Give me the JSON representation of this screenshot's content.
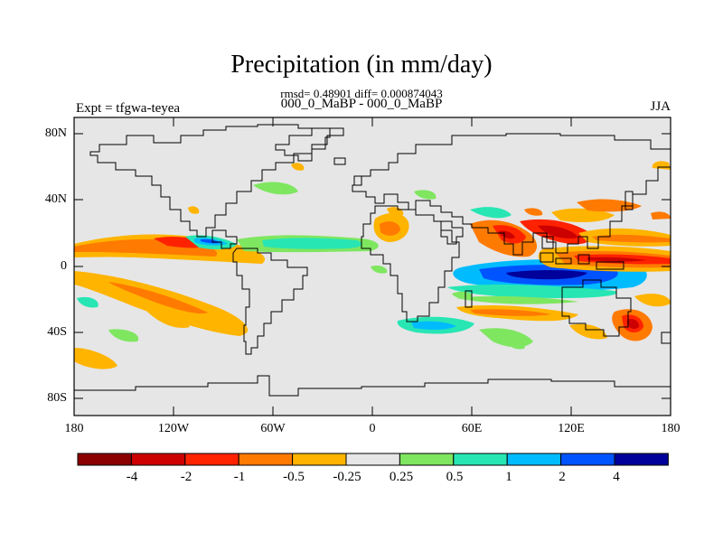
{
  "title": "Precipitation (in mm/day)",
  "subtitle_stats": "rmsd= 0.48901 diff= 0.000874043",
  "subtitle_cases": "000_0_MaBP - 000_0_MaBP",
  "left_string": "Expt = tfgwa-teyea",
  "right_string": "JJA",
  "map": {
    "projection": "cylindrical equidistant",
    "lon_range": [
      -180,
      180
    ],
    "lat_range": [
      -90,
      90
    ],
    "lat_ticks": [
      {
        "value": 80,
        "label": "80N"
      },
      {
        "value": 40,
        "label": "40N"
      },
      {
        "value": 0,
        "label": "0"
      },
      {
        "value": -40,
        "label": "40S"
      },
      {
        "value": -80,
        "label": "80S"
      }
    ],
    "lon_ticks": [
      {
        "value": -180,
        "label": "180"
      },
      {
        "value": -120,
        "label": "120W"
      },
      {
        "value": -60,
        "label": "60W"
      },
      {
        "value": 0,
        "label": "0"
      },
      {
        "value": 60,
        "label": "60E"
      },
      {
        "value": 120,
        "label": "120E"
      },
      {
        "value": 180,
        "label": "180"
      }
    ],
    "background_color": "#e6e6e6",
    "coastline_color": "#000000"
  },
  "colorbar": {
    "colors": [
      "#8b0000",
      "#cc0000",
      "#ff2200",
      "#ff7a00",
      "#ffb400",
      "#e6e6e6",
      "#7fe660",
      "#28e6b4",
      "#00bcff",
      "#0054ff",
      "#00009a"
    ],
    "labels": [
      "-4",
      "-2",
      "-1",
      "-0.5",
      "-0.25",
      "0.25",
      "0.5",
      "1",
      "2",
      "4"
    ]
  },
  "features": [
    {
      "name": "east-pacific-itcz-positive",
      "lon": -150,
      "lat": 10,
      "color_index": 3
    },
    {
      "name": "east-pacific-itcz-strong",
      "lon": -125,
      "lat": 7,
      "color_index": 2
    },
    {
      "name": "central-america-negative",
      "lon": -100,
      "lat": 7,
      "color_index": 8
    },
    {
      "name": "atlantic-itcz-negative",
      "lon": -40,
      "lat": 6,
      "color_index": 7
    },
    {
      "name": "west-africa-positive",
      "lon": 3,
      "lat": 10,
      "color_index": 3
    },
    {
      "name": "indian-ocean-negative",
      "lon": 95,
      "lat": -4,
      "color_index": 9
    },
    {
      "name": "bay-of-bengal-positive",
      "lon": 88,
      "lat": 18,
      "color_index": 1
    },
    {
      "name": "maritime-continent-positive",
      "lon": 130,
      "lat": 3,
      "color_index": 2
    },
    {
      "name": "south-pacific-positive",
      "lon": -140,
      "lat": -18,
      "color_index": 4
    },
    {
      "name": "east-australia-positive",
      "lon": 155,
      "lat": -35,
      "color_index": 1
    },
    {
      "name": "southern-ocean-negative",
      "lon": 40,
      "lat": -37,
      "color_index": 8
    }
  ]
}
